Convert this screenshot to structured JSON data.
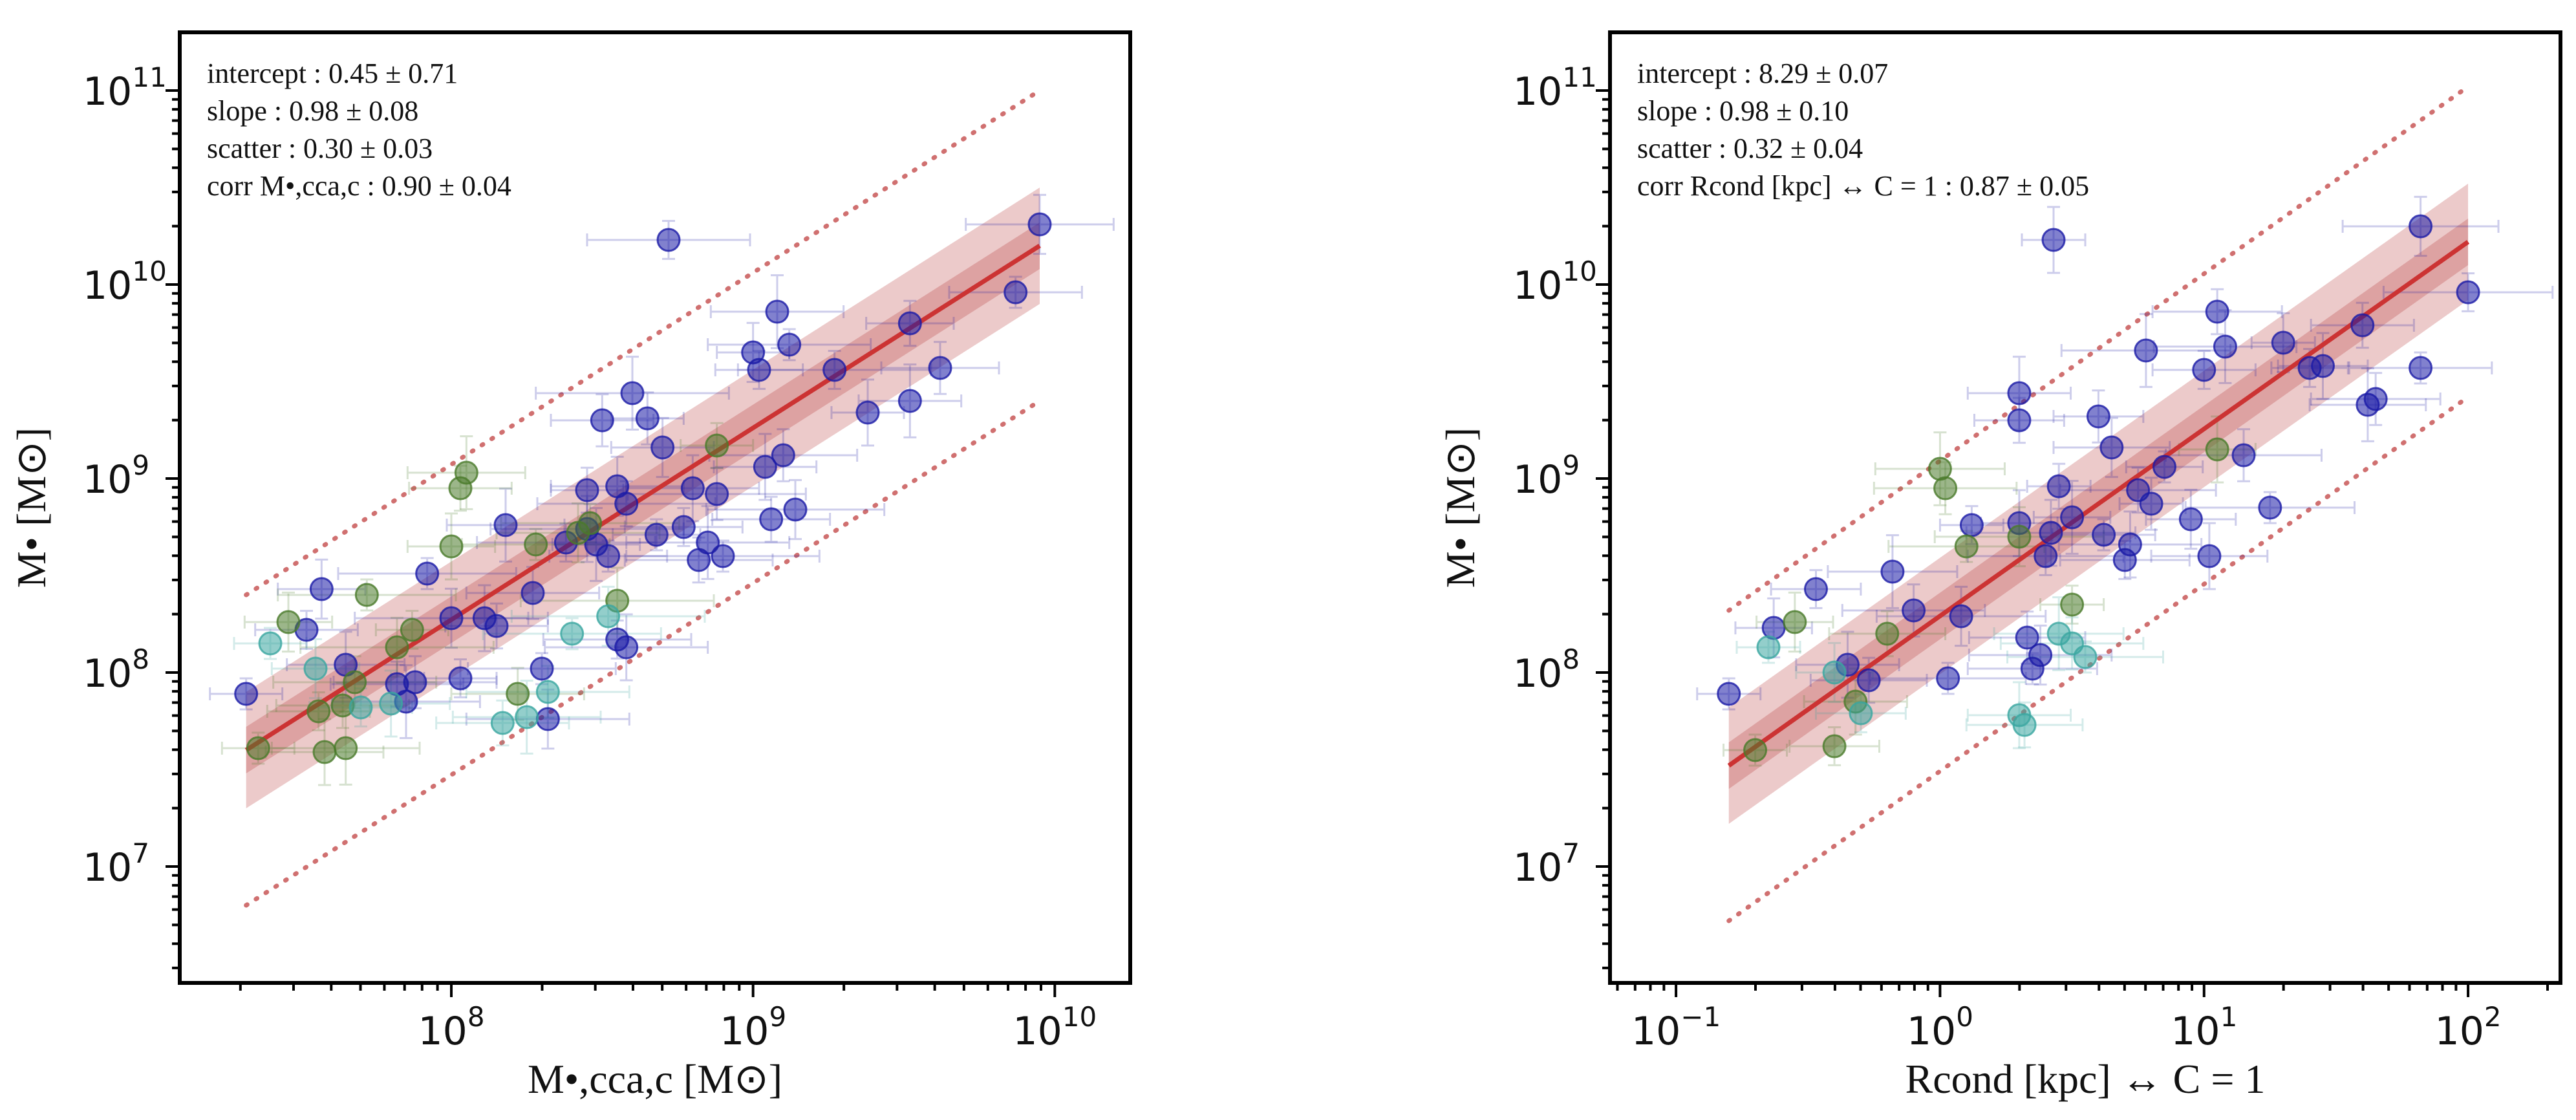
{
  "figure": {
    "panels": 2
  },
  "chart_data": [
    {
      "type": "scatter",
      "panel": "left",
      "ylabel": "M• [M⊙]",
      "xlabel": "M•,cca,c [M⊙]",
      "xlim_log10": [
        7.1,
        10.25
      ],
      "ylim_log10": [
        6.4,
        11.3
      ],
      "xticks": [
        {
          "exp": 8,
          "label": "10",
          "sup": "8"
        },
        {
          "exp": 9,
          "label": "10",
          "sup": "9"
        },
        {
          "exp": 10,
          "label": "10",
          "sup": "10"
        }
      ],
      "yticks": [
        {
          "exp": 7,
          "label": "10",
          "sup": "7"
        },
        {
          "exp": 8,
          "label": "10",
          "sup": "8"
        },
        {
          "exp": 9,
          "label": "10",
          "sup": "9"
        },
        {
          "exp": 10,
          "label": "10",
          "sup": "10"
        },
        {
          "exp": 11,
          "label": "10",
          "sup": "11"
        }
      ],
      "stats": [
        "intercept :  0.45 ± 0.71",
        "slope :  0.98 ± 0.08",
        "scatter :  0.30 ± 0.03",
        "corr M•,cca,c :  0.90 ± 0.04"
      ],
      "fit": {
        "x0": 7.32,
        "y0": 7.6,
        "x1": 9.95,
        "y1": 10.2,
        "band_inner": 0.12,
        "band_outer": 0.3,
        "dotted_offset": 0.8
      },
      "series": [
        {
          "name": "blue",
          "color": "#1a1aa6",
          "points": [
            [
              7.32,
              7.89
            ],
            [
              7.57,
              8.43
            ],
            [
              7.52,
              8.22
            ],
            [
              7.65,
              8.04
            ],
            [
              7.82,
              7.94
            ],
            [
              7.85,
              7.85
            ],
            [
              7.88,
              7.95
            ],
            [
              7.92,
              8.51
            ],
            [
              8.0,
              8.28
            ],
            [
              8.03,
              7.97
            ],
            [
              8.11,
              8.28
            ],
            [
              8.15,
              8.24
            ],
            [
              8.18,
              8.76
            ],
            [
              8.27,
              8.41
            ],
            [
              8.3,
              8.02
            ],
            [
              8.32,
              7.76
            ],
            [
              8.38,
              8.67
            ],
            [
              8.45,
              8.74
            ],
            [
              8.45,
              8.94
            ],
            [
              8.48,
              8.66
            ],
            [
              8.5,
              9.3
            ],
            [
              8.52,
              8.6
            ],
            [
              8.55,
              8.96
            ],
            [
              8.55,
              8.17
            ],
            [
              8.58,
              8.13
            ],
            [
              8.58,
              8.87
            ],
            [
              8.6,
              9.44
            ],
            [
              8.65,
              9.31
            ],
            [
              8.68,
              8.71
            ],
            [
              8.7,
              9.16
            ],
            [
              8.77,
              8.75
            ],
            [
              8.8,
              8.95
            ],
            [
              8.82,
              8.58
            ],
            [
              8.85,
              8.67
            ],
            [
              8.88,
              8.92
            ],
            [
              8.9,
              8.6
            ],
            [
              9.0,
              9.65
            ],
            [
              9.02,
              9.56
            ],
            [
              9.04,
              9.06
            ],
            [
              9.06,
              8.79
            ],
            [
              9.08,
              9.86
            ],
            [
              9.1,
              9.12
            ],
            [
              9.12,
              9.69
            ],
            [
              9.14,
              8.84
            ],
            [
              9.27,
              9.56
            ],
            [
              9.38,
              9.34
            ],
            [
              9.52,
              9.8
            ],
            [
              9.52,
              9.4
            ],
            [
              9.62,
              9.57
            ],
            [
              9.87,
              9.96
            ],
            [
              9.95,
              10.31
            ],
            [
              8.72,
              10.23
            ]
          ]
        },
        {
          "name": "green",
          "color": "#4a7a2a",
          "points": [
            [
              7.36,
              7.61
            ],
            [
              7.46,
              8.26
            ],
            [
              7.56,
              7.8
            ],
            [
              7.58,
              7.59
            ],
            [
              7.64,
              7.83
            ],
            [
              7.65,
              7.61
            ],
            [
              7.68,
              7.95
            ],
            [
              7.72,
              8.4
            ],
            [
              7.82,
              8.13
            ],
            [
              7.87,
              8.22
            ],
            [
              8.0,
              8.65
            ],
            [
              8.03,
              8.95
            ],
            [
              8.05,
              9.03
            ],
            [
              8.22,
              7.89
            ],
            [
              8.28,
              8.66
            ],
            [
              8.42,
              8.72
            ],
            [
              8.46,
              8.77
            ],
            [
              8.55,
              8.37
            ],
            [
              8.88,
              9.17
            ]
          ]
        },
        {
          "name": "teal",
          "color": "#3aa6a0",
          "points": [
            [
              7.4,
              8.15
            ],
            [
              7.55,
              8.02
            ],
            [
              7.7,
              7.82
            ],
            [
              7.8,
              7.84
            ],
            [
              8.17,
              7.74
            ],
            [
              8.25,
              7.77
            ],
            [
              8.32,
              7.9
            ],
            [
              8.4,
              8.2
            ],
            [
              8.52,
              8.29
            ]
          ]
        }
      ]
    },
    {
      "type": "scatter",
      "panel": "right",
      "ylabel": "M• [M⊙]",
      "xlabel": "Rcond [kpc] ↔ C = 1",
      "xlim_log10": [
        -1.25,
        2.35
      ],
      "ylim_log10": [
        6.4,
        11.3
      ],
      "xticks": [
        {
          "exp": -1,
          "label": "10",
          "sup": "−1"
        },
        {
          "exp": 0,
          "label": "10",
          "sup": "0"
        },
        {
          "exp": 1,
          "label": "10",
          "sup": "1"
        },
        {
          "exp": 2,
          "label": "10",
          "sup": "2"
        }
      ],
      "yticks": [
        {
          "exp": 7,
          "label": "10",
          "sup": "7"
        },
        {
          "exp": 8,
          "label": "10",
          "sup": "8"
        },
        {
          "exp": 9,
          "label": "10",
          "sup": "9"
        },
        {
          "exp": 10,
          "label": "10",
          "sup": "10"
        },
        {
          "exp": 11,
          "label": "10",
          "sup": "11"
        }
      ],
      "stats": [
        "intercept :  8.29 ± 0.07",
        "slope :  0.98 ± 0.10",
        "scatter :  0.32 ± 0.04",
        "corr Rcond [kpc] ↔ C = 1 :  0.87 ± 0.05"
      ],
      "fit": {
        "x0": -0.8,
        "y0": 7.52,
        "x1": 2.0,
        "y1": 10.22,
        "band_inner": 0.12,
        "band_outer": 0.3,
        "dotted_offset": 0.8
      },
      "series": [
        {
          "name": "blue",
          "color": "#1a1aa6",
          "points": [
            [
              -0.8,
              7.89
            ],
            [
              -0.63,
              8.23
            ],
            [
              -0.47,
              8.43
            ],
            [
              -0.35,
              8.04
            ],
            [
              -0.27,
              7.96
            ],
            [
              -0.18,
              8.52
            ],
            [
              -0.1,
              8.32
            ],
            [
              0.03,
              7.97
            ],
            [
              0.08,
              8.29
            ],
            [
              0.12,
              8.76
            ],
            [
              0.3,
              8.77
            ],
            [
              0.3,
              9.3
            ],
            [
              0.3,
              9.44
            ],
            [
              0.33,
              8.18
            ],
            [
              0.35,
              8.02
            ],
            [
              0.38,
              8.09
            ],
            [
              0.4,
              8.6
            ],
            [
              0.42,
              8.72
            ],
            [
              0.45,
              8.96
            ],
            [
              0.5,
              8.8
            ],
            [
              0.6,
              9.32
            ],
            [
              0.62,
              8.71
            ],
            [
              0.65,
              9.16
            ],
            [
              0.7,
              8.58
            ],
            [
              0.72,
              8.66
            ],
            [
              0.75,
              8.94
            ],
            [
              0.78,
              9.66
            ],
            [
              0.8,
              8.87
            ],
            [
              0.85,
              9.06
            ],
            [
              0.95,
              8.79
            ],
            [
              1.0,
              9.56
            ],
            [
              1.02,
              8.6
            ],
            [
              1.05,
              9.86
            ],
            [
              1.08,
              9.68
            ],
            [
              1.15,
              9.12
            ],
            [
              1.25,
              8.85
            ],
            [
              1.3,
              9.7
            ],
            [
              1.4,
              9.57
            ],
            [
              1.45,
              9.58
            ],
            [
              1.6,
              9.79
            ],
            [
              1.62,
              9.38
            ],
            [
              1.65,
              9.41
            ],
            [
              1.82,
              9.57
            ],
            [
              1.82,
              10.3
            ],
            [
              2.0,
              9.96
            ],
            [
              0.43,
              10.23
            ]
          ]
        },
        {
          "name": "green",
          "color": "#4a7a2a",
          "points": [
            [
              -0.7,
              7.6
            ],
            [
              -0.55,
              8.26
            ],
            [
              -0.4,
              7.62
            ],
            [
              -0.32,
              7.85
            ],
            [
              -0.2,
              8.2
            ],
            [
              0.0,
              9.05
            ],
            [
              0.02,
              8.95
            ],
            [
              0.1,
              8.65
            ],
            [
              0.3,
              8.7
            ],
            [
              0.5,
              8.35
            ],
            [
              1.05,
              9.15
            ]
          ]
        },
        {
          "name": "teal",
          "color": "#3aa6a0",
          "points": [
            [
              -0.65,
              8.13
            ],
            [
              -0.4,
              8.0
            ],
            [
              -0.3,
              7.79
            ],
            [
              0.3,
              7.78
            ],
            [
              0.32,
              7.73
            ],
            [
              0.45,
              8.2
            ],
            [
              0.5,
              8.15
            ],
            [
              0.55,
              8.08
            ]
          ]
        }
      ]
    }
  ]
}
